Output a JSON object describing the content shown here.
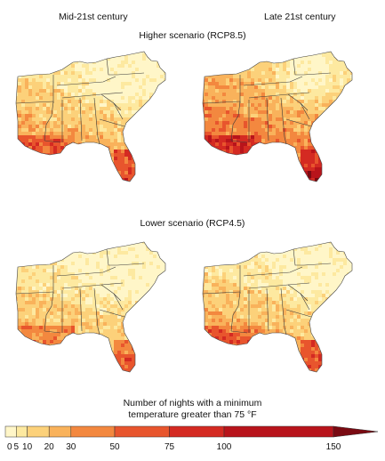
{
  "columns": {
    "left": "Mid-21st century",
    "right": "Late 21st century"
  },
  "scenarios": {
    "higher": "Higher scenario (RCP8.5)",
    "lower": "Lower scenario (RCP4.5)"
  },
  "legend": {
    "title_line1": "Number of nights with a minimum",
    "title_line2": "temperature greater than 75 °F",
    "ticks": [
      "0",
      "5",
      "10",
      "20",
      "30",
      "50",
      "75",
      "100",
      "150"
    ],
    "colors": [
      "#fff6c8",
      "#fde9a0",
      "#fcd17a",
      "#f9b25b",
      "#f3883f",
      "#e8552d",
      "#d42a22",
      "#b8141b",
      "#7a0a12"
    ]
  },
  "maps": [
    {
      "scenario": "RCP8.5",
      "period": "Mid-21st century",
      "intensity": 0.45
    },
    {
      "scenario": "RCP8.5",
      "period": "Late 21st century",
      "intensity": 0.8
    },
    {
      "scenario": "RCP4.5",
      "period": "Mid-21st century",
      "intensity": 0.3
    },
    {
      "scenario": "RCP4.5",
      "period": "Late 21st century",
      "intensity": 0.4
    }
  ]
}
